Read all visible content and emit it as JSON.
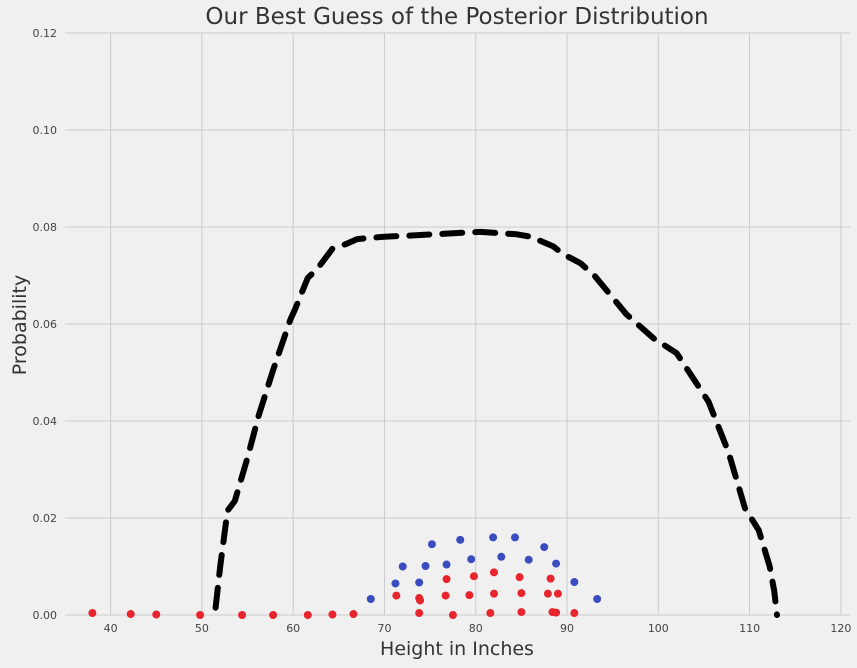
{
  "chart_data": {
    "type": "scatter",
    "title": "Our Best Guess of the Posterior Distribution",
    "xlabel": "Height in Inches",
    "ylabel": "Probability",
    "xlim": [
      35,
      121
    ],
    "ylim": [
      0,
      0.12
    ],
    "grid": true,
    "xticks": [
      "40",
      "50",
      "60",
      "70",
      "80",
      "90",
      "100",
      "110",
      "120"
    ],
    "yticks": [
      "0.00",
      "0.02",
      "0.04",
      "0.06",
      "0.08",
      "0.10",
      "0.12"
    ],
    "colors": {
      "dashed": "#000000",
      "blue": "#3b4cc0",
      "red": "#e8242c"
    },
    "series": [
      {
        "kind": "dashed-curve",
        "color": "#000000",
        "points": [
          [
            51.5,
            0.0015
          ],
          [
            52.0,
            0.01
          ],
          [
            52.8,
            0.0215
          ],
          [
            53.6,
            0.0235
          ],
          [
            55.0,
            0.0325
          ],
          [
            56.2,
            0.041
          ],
          [
            57.8,
            0.0505
          ],
          [
            59.7,
            0.061
          ],
          [
            60.2,
            0.063
          ],
          [
            61.6,
            0.0695
          ],
          [
            62.7,
            0.0715
          ],
          [
            64.3,
            0.0755
          ],
          [
            65.8,
            0.0765
          ],
          [
            67.0,
            0.0775
          ],
          [
            70.0,
            0.078
          ],
          [
            72.5,
            0.0782
          ],
          [
            78.5,
            0.0788
          ],
          [
            80.5,
            0.079
          ],
          [
            84.5,
            0.0785
          ],
          [
            86.0,
            0.078
          ],
          [
            88.5,
            0.076
          ],
          [
            89.5,
            0.0745
          ],
          [
            91.5,
            0.0725
          ],
          [
            93.0,
            0.07
          ],
          [
            96.5,
            0.062
          ],
          [
            99.5,
            0.057
          ],
          [
            102.0,
            0.054
          ],
          [
            105.5,
            0.044
          ],
          [
            107.7,
            0.0335
          ],
          [
            109.5,
            0.022
          ],
          [
            111.0,
            0.0175
          ],
          [
            112.2,
            0.01
          ],
          [
            112.7,
            0.005
          ],
          [
            113.0,
            0.0
          ]
        ]
      },
      {
        "kind": "points",
        "color": "#3b4cc0",
        "points": [
          [
            68.5,
            0.0033
          ],
          [
            71.2,
            0.0065
          ],
          [
            72.0,
            0.01
          ],
          [
            73.8,
            0.0067
          ],
          [
            74.5,
            0.0101
          ],
          [
            75.2,
            0.0146
          ],
          [
            76.8,
            0.0104
          ],
          [
            78.3,
            0.0155
          ],
          [
            79.5,
            0.0115
          ],
          [
            81.9,
            0.016
          ],
          [
            82.8,
            0.012
          ],
          [
            84.3,
            0.016
          ],
          [
            85.8,
            0.0114
          ],
          [
            87.5,
            0.014
          ],
          [
            88.8,
            0.0106
          ],
          [
            90.8,
            0.0068
          ],
          [
            93.3,
            0.0033
          ]
        ]
      },
      {
        "kind": "points",
        "color": "#e8242c",
        "points": [
          [
            38.0,
            0.0004
          ],
          [
            42.2,
            0.0002
          ],
          [
            45.0,
            0.0001
          ],
          [
            49.8,
            0.0
          ],
          [
            54.4,
            0.0
          ],
          [
            57.8,
            0.0
          ],
          [
            61.6,
            0.0
          ],
          [
            64.3,
            0.0001
          ],
          [
            66.6,
            0.0002
          ],
          [
            71.3,
            0.004
          ],
          [
            73.8,
            0.0035
          ],
          [
            73.9,
            0.003
          ],
          [
            73.8,
            0.0004
          ],
          [
            76.8,
            0.0074
          ],
          [
            76.7,
            0.004
          ],
          [
            77.5,
            0.0
          ],
          [
            79.3,
            0.0041
          ],
          [
            79.8,
            0.008
          ],
          [
            81.6,
            0.0004
          ],
          [
            82.0,
            0.0088
          ],
          [
            82.0,
            0.0044
          ],
          [
            84.8,
            0.0078
          ],
          [
            85.0,
            0.0045
          ],
          [
            85.0,
            0.0006
          ],
          [
            87.9,
            0.0044
          ],
          [
            88.2,
            0.0075
          ],
          [
            88.4,
            0.0006
          ],
          [
            88.8,
            0.0005
          ],
          [
            89.0,
            0.0044
          ],
          [
            90.8,
            0.0004
          ]
        ]
      }
    ]
  }
}
